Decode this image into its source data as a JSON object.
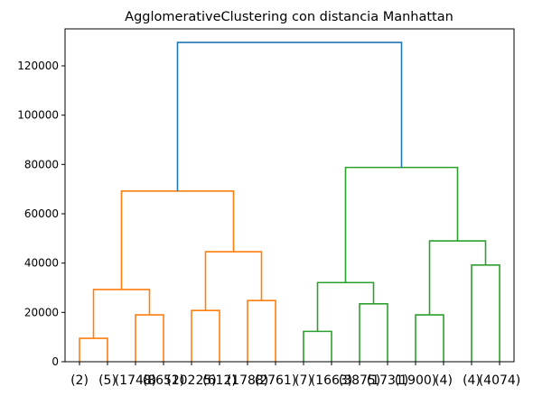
{
  "chart_data": {
    "type": "dendrogram",
    "title": "AgglomerativeClustering con distancia Manhattan",
    "xlabel": "",
    "ylabel": "",
    "ylim": [
      0,
      135000
    ],
    "yticks": [
      0,
      20000,
      40000,
      60000,
      80000,
      100000,
      120000
    ],
    "ytick_labels": [
      "0",
      "20000",
      "40000",
      "60000",
      "80000",
      "100000",
      "120000"
    ],
    "grid": false,
    "legend": "none",
    "colors": {
      "orange": "#ff7f0e",
      "green": "#2ca02c",
      "blue": "#1f77b4"
    },
    "leaves": [
      "(2)",
      "(5)",
      "(1748)",
      "(8652)",
      "(10225)",
      "(612)",
      "(1788)",
      "(2761)",
      "(7)",
      "(1663)",
      "(3875)",
      "(1731)",
      "(1900)",
      "(4)",
      "(4)",
      "(4074)"
    ],
    "links": [
      {
        "kind": "leaves",
        "a": 0,
        "b": 1,
        "height": 9500,
        "color": "orange"
      },
      {
        "kind": "leaves",
        "a": 2,
        "b": 3,
        "height": 19000,
        "color": "orange"
      },
      {
        "kind": "leaves",
        "a": 4,
        "b": 5,
        "height": 20800,
        "color": "orange"
      },
      {
        "kind": "leaves",
        "a": 6,
        "b": 7,
        "height": 24800,
        "color": "orange"
      },
      {
        "kind": "leaves",
        "a": 8,
        "b": 9,
        "height": 12300,
        "color": "green"
      },
      {
        "kind": "leaves",
        "a": 10,
        "b": 11,
        "height": 23500,
        "color": "green"
      },
      {
        "kind": "leaves",
        "a": 12,
        "b": 13,
        "height": 19000,
        "color": "green"
      },
      {
        "kind": "leaves",
        "a": 14,
        "b": 15,
        "height": 39200,
        "color": "green"
      },
      {
        "kind": "nodes",
        "a": 0,
        "b": 1,
        "height": 29300,
        "color": "orange"
      },
      {
        "kind": "nodes",
        "a": 2,
        "b": 3,
        "height": 44600,
        "color": "orange"
      },
      {
        "kind": "nodes",
        "a": 4,
        "b": 5,
        "height": 32100,
        "color": "green"
      },
      {
        "kind": "nodes",
        "a": 6,
        "b": 7,
        "height": 49000,
        "color": "green"
      },
      {
        "kind": "nodes",
        "a": 8,
        "b": 9,
        "height": 69200,
        "color": "orange"
      },
      {
        "kind": "nodes",
        "a": 10,
        "b": 11,
        "height": 78800,
        "color": "green"
      },
      {
        "kind": "nodes",
        "a": 12,
        "b": 13,
        "height": 129500,
        "color": "blue"
      }
    ]
  }
}
